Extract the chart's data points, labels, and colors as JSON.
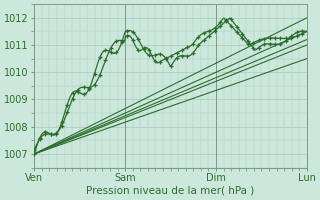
{
  "background_color": "#cce8dc",
  "plot_bg_color": "#cce8dc",
  "grid_color": "#aacabc",
  "line_color": "#2d6e2d",
  "xlabel": "Pression niveau de la mer( hPa )",
  "ylim": [
    1006.5,
    1012.5
  ],
  "yticks": [
    1007,
    1008,
    1009,
    1010,
    1011,
    1012
  ],
  "day_labels": [
    "Ven",
    "Sam",
    "Dim",
    "Lun"
  ],
  "day_positions": [
    0,
    72,
    144,
    216
  ],
  "xlim": [
    0,
    216
  ],
  "xlabel_fontsize": 7.5,
  "tick_fontsize": 7.0
}
